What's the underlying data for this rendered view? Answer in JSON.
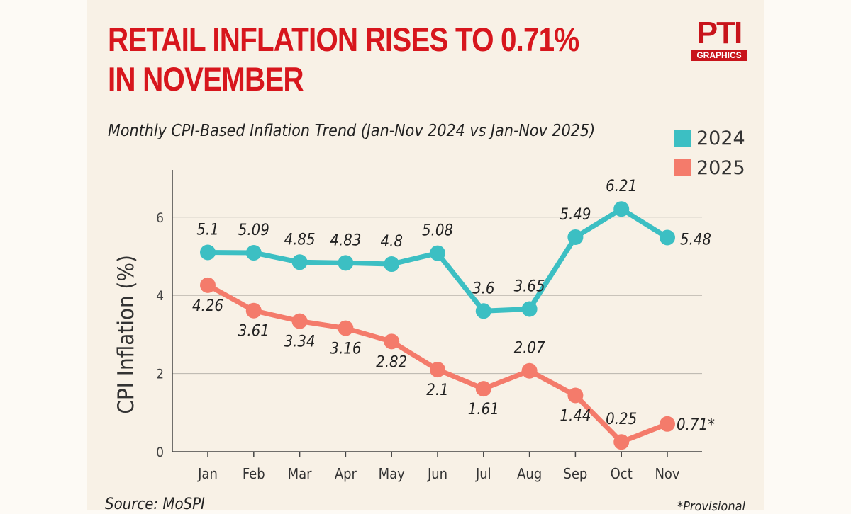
{
  "header": {
    "title_line1": "RETAIL INFLATION RISES TO 0.71%",
    "title_line2": "IN NOVEMBER",
    "logo_text": "PTI",
    "logo_sub": "GRAPHICS"
  },
  "chart_data": {
    "type": "line",
    "title": "Monthly CPI-Based Inflation Trend (Jan-Nov 2024 vs Jan-Nov 2025)",
    "xlabel": "",
    "ylabel": "CPI Inflation (%)",
    "ylim": [
      0,
      7
    ],
    "yticks": [
      0,
      2,
      4,
      6
    ],
    "grid": true,
    "legend": "top-right",
    "categories": [
      "Jan",
      "Feb",
      "Mar",
      "Apr",
      "May",
      "Jun",
      "Jul",
      "Aug",
      "Sep",
      "Oct",
      "Nov"
    ],
    "series": [
      {
        "name": "2024",
        "color": "#3cbfc3",
        "values": [
          5.1,
          5.09,
          4.85,
          4.83,
          4.8,
          5.08,
          3.6,
          3.65,
          5.49,
          6.21,
          5.48
        ],
        "labels": [
          "5.1",
          "5.09",
          "4.85",
          "4.83",
          "4.8",
          "5.08",
          "3.6",
          "3.65",
          "5.49",
          "6.21",
          "5.48"
        ]
      },
      {
        "name": "2025",
        "color": "#f47b6b",
        "values": [
          4.26,
          3.61,
          3.34,
          3.16,
          2.82,
          2.1,
          1.61,
          2.07,
          1.44,
          0.25,
          0.71
        ],
        "labels": [
          "4.26",
          "3.61",
          "3.34",
          "3.16",
          "2.82",
          "2.1",
          "1.61",
          "2.07",
          "1.44",
          "0.25",
          "0.71*"
        ]
      }
    ]
  },
  "footer": {
    "source": "Source: MoSPI",
    "note": "*Provisional"
  }
}
